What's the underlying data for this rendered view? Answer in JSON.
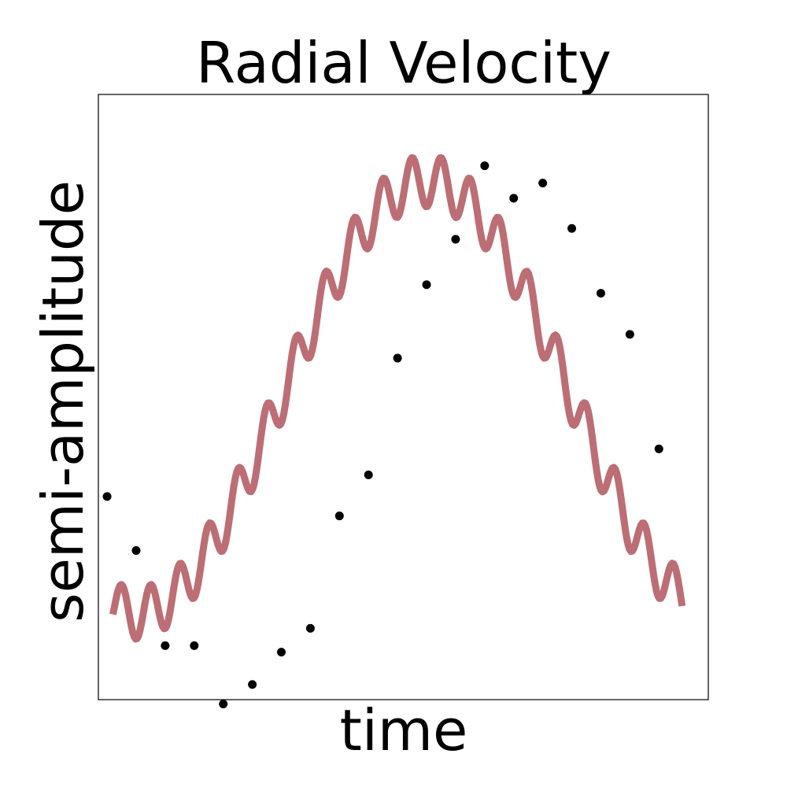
{
  "chart_data": {
    "type": "line",
    "title": "Radial Velocity",
    "xlabel": "time",
    "ylabel": "semi-amplitude",
    "xlim": [
      -0.3,
      20.7
    ],
    "ylim": [
      -1.4,
      1.4
    ],
    "grid": false,
    "legend": "none",
    "colors": {
      "line": "#bc6e74",
      "points": "#000000",
      "frame": "#000000"
    },
    "curve": {
      "name": "",
      "model": "y = sin(2*pi*(x-6)/20) + 0.12*sin(2*pi*(x-0.25))",
      "x_range": [
        0.2,
        19.8
      ]
    },
    "series": [
      {
        "name": "",
        "x": [
          0,
          1,
          2,
          3,
          4,
          5,
          6,
          7,
          8,
          9,
          10,
          11,
          12,
          13,
          14,
          15,
          16,
          17,
          18,
          19
        ],
        "y": [
          -0.46,
          -0.71,
          -1.15,
          -1.15,
          -1.42,
          -1.33,
          -1.18,
          -1.07,
          -0.55,
          -0.36,
          0.18,
          0.52,
          0.73,
          1.07,
          0.92,
          0.99,
          0.78,
          0.48,
          0.29,
          -0.24
        ]
      }
    ]
  }
}
